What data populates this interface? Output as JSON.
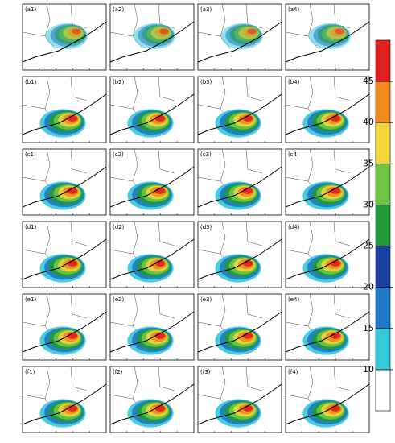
{
  "panels": [
    {
      "label": "(a1)"
    },
    {
      "label": "(a2)"
    },
    {
      "label": "(a3)"
    },
    {
      "label": "(a4)"
    },
    {
      "label": "(b1)"
    },
    {
      "label": "(b2)"
    },
    {
      "label": "(b3)"
    },
    {
      "label": "(b4)"
    },
    {
      "label": "(c1)"
    },
    {
      "label": "(c2)"
    },
    {
      "label": "(c3)"
    },
    {
      "label": "(c4)"
    },
    {
      "label": "(d1)"
    },
    {
      "label": "(d2)"
    },
    {
      "label": "(d3)"
    },
    {
      "label": "(d4)"
    },
    {
      "label": "(e1)"
    },
    {
      "label": "(e2)"
    },
    {
      "label": "(e3)"
    },
    {
      "label": "(e4)"
    },
    {
      "label": "(f1)"
    },
    {
      "label": "(f2)"
    },
    {
      "label": "(f3)"
    },
    {
      "label": "(f4)"
    }
  ],
  "colorbar": {
    "ticks": [
      10,
      15,
      20,
      25,
      30,
      35,
      40,
      45
    ],
    "colors": [
      "#ffffff",
      "#35c8d8",
      "#1f78c8",
      "#1a3fa0",
      "#1e9a38",
      "#6cc644",
      "#f2d43a",
      "#f08c1e",
      "#e02020"
    ]
  }
}
